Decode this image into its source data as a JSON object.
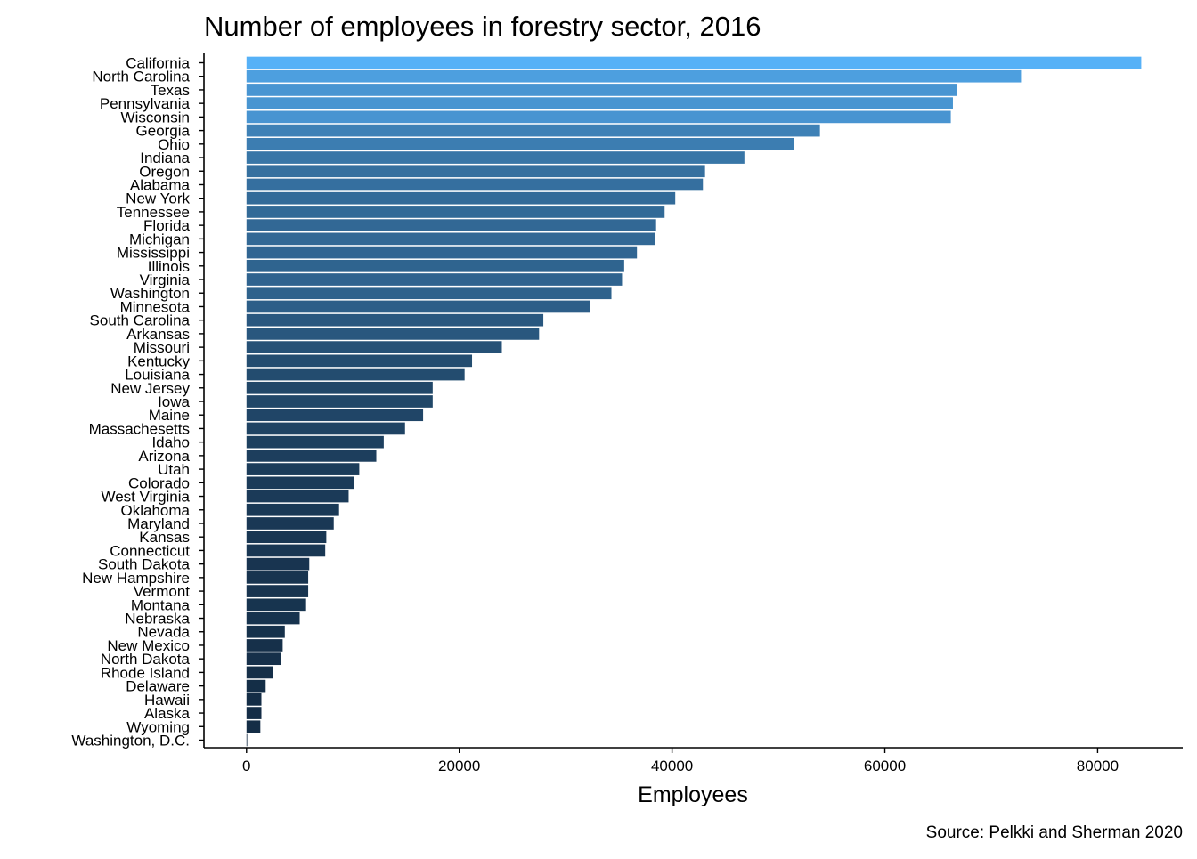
{
  "chart_data": {
    "type": "bar",
    "orientation": "horizontal",
    "title": "Number of employees in forestry sector, 2016",
    "xlabel": "Employees",
    "ylabel": "",
    "caption": "Source: Pelkki and Sherman 2020",
    "xlim": [
      -4000,
      88000
    ],
    "xticks": [
      0,
      20000,
      40000,
      60000,
      80000
    ],
    "xtick_labels": [
      "0",
      "20000",
      "40000",
      "60000",
      "80000"
    ],
    "grid": false,
    "legend": "none",
    "colors": {
      "low": "#132b43",
      "high": "#56b1f7"
    },
    "categories": [
      "California",
      "North Carolina",
      "Texas",
      "Pennsylvania",
      "Wisconsin",
      "Georgia",
      "Ohio",
      "Indiana",
      "Oregon",
      "Alabama",
      "New York",
      "Tennessee",
      "Florida",
      "Michigan",
      "Mississippi",
      "Illinois",
      "Virginia",
      "Washington",
      "Minnesota",
      "South Carolina",
      "Arkansas",
      "Missouri",
      "Kentucky",
      "Louisiana",
      "New Jersey",
      "Iowa",
      "Maine",
      "Massachesetts",
      "Idaho",
      "Arizona",
      "Utah",
      "Colorado",
      "West Virginia",
      "Oklahoma",
      "Maryland",
      "Kansas",
      "Connecticut",
      "South Dakota",
      "New Hampshire",
      "Vermont",
      "Montana",
      "Nebraska",
      "Nevada",
      "New Mexico",
      "North Dakota",
      "Rhode Island",
      "Delaware",
      "Hawaii",
      "Alaska",
      "Wyoming",
      "Washington, D.C."
    ],
    "values": [
      84100,
      72800,
      66800,
      66400,
      66200,
      53900,
      51500,
      46800,
      43100,
      42900,
      40300,
      39300,
      38500,
      38400,
      36700,
      35500,
      35300,
      34300,
      32300,
      27900,
      27500,
      24000,
      21200,
      20500,
      17500,
      17500,
      16600,
      14900,
      12900,
      12200,
      10600,
      10100,
      9600,
      8700,
      8200,
      7500,
      7400,
      5900,
      5800,
      5800,
      5600,
      5000,
      3600,
      3400,
      3200,
      2500,
      1800,
      1400,
      1400,
      1300,
      50
    ]
  }
}
